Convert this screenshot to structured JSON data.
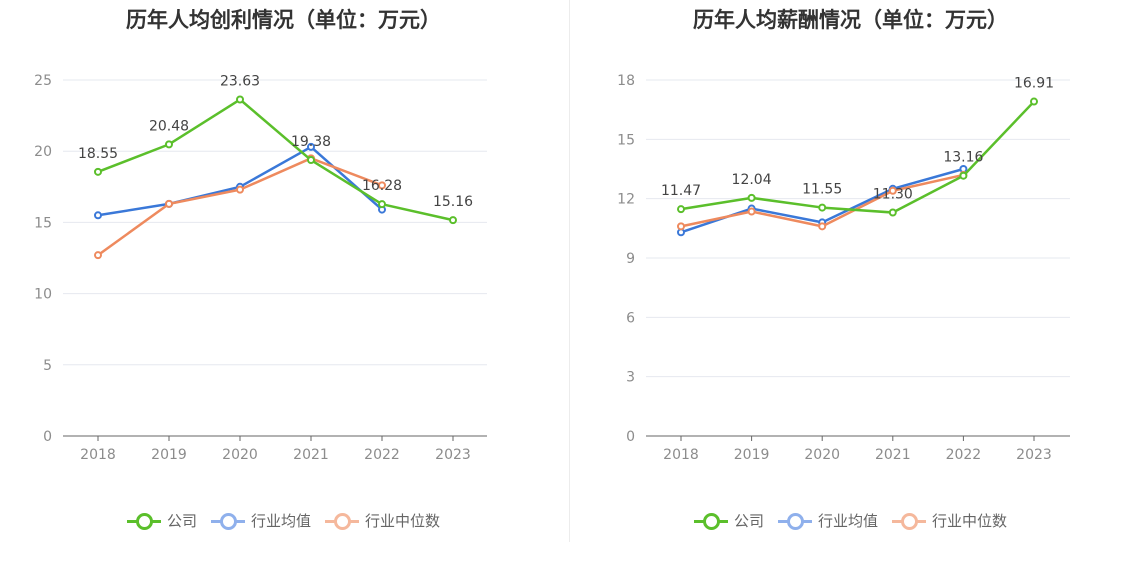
{
  "colors": {
    "company": "#5bbf2b",
    "avg": "#3a78d8",
    "median": "#ee8a5e",
    "avg_legend": "#8fb0ec",
    "median_legend": "#f5b89c"
  },
  "legend": [
    "公司",
    "行业均值",
    "行业中位数"
  ],
  "chart_data": [
    {
      "type": "line",
      "title": "历年人均创利情况（单位：万元）",
      "categories": [
        "2018",
        "2019",
        "2020",
        "2021",
        "2022",
        "2023"
      ],
      "ylim": [
        0,
        25
      ],
      "yticks": [
        0,
        5,
        10,
        15,
        20,
        25
      ],
      "grid": true,
      "legend_position": "bottom",
      "series": [
        {
          "name": "公司",
          "values": [
            18.55,
            20.48,
            23.63,
            19.38,
            16.28,
            15.16
          ],
          "labels": [
            "18.55",
            "20.48",
            "23.63",
            "19.38",
            "16.28",
            "15.16"
          ]
        },
        {
          "name": "行业均值",
          "values": [
            15.5,
            16.3,
            17.5,
            20.3,
            15.9,
            null
          ]
        },
        {
          "name": "行业中位数",
          "values": [
            12.7,
            16.3,
            17.3,
            19.5,
            17.6,
            null
          ]
        }
      ]
    },
    {
      "type": "line",
      "title": "历年人均薪酬情况（单位：万元）",
      "categories": [
        "2018",
        "2019",
        "2020",
        "2021",
        "2022",
        "2023"
      ],
      "ylim": [
        0,
        18
      ],
      "yticks": [
        0,
        3,
        6,
        9,
        12,
        15,
        18
      ],
      "grid": true,
      "legend_position": "bottom",
      "series": [
        {
          "name": "公司",
          "values": [
            11.47,
            12.04,
            11.55,
            11.3,
            13.16,
            16.91
          ],
          "labels": [
            "11.47",
            "12.04",
            "11.55",
            "11.30",
            "13.16",
            "16.91"
          ]
        },
        {
          "name": "行业均值",
          "values": [
            10.3,
            11.5,
            10.8,
            12.5,
            13.5,
            null
          ]
        },
        {
          "name": "行业中位数",
          "values": [
            10.6,
            11.35,
            10.6,
            12.4,
            13.2,
            null
          ]
        }
      ]
    }
  ]
}
